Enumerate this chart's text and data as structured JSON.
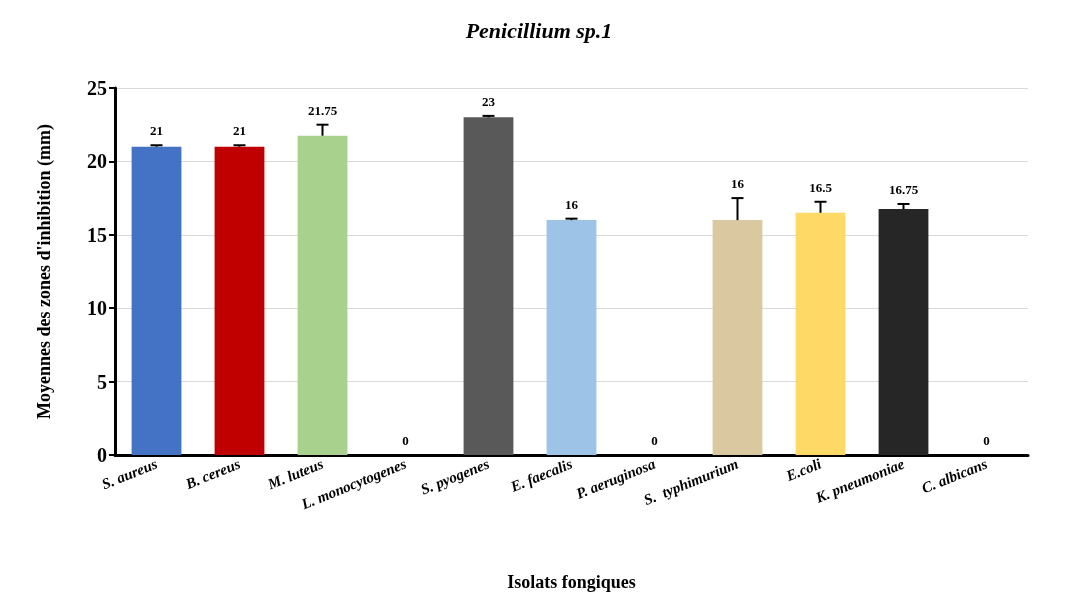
{
  "chart_data": {
    "type": "bar",
    "title": "Penicillium sp.1",
    "xlabel": "Isolats fongiques",
    "ylabel": "Moyennes des zones d'inhibition (mm)",
    "categories": [
      "S. aureus",
      "B. cereus",
      "M. luteus",
      "L. monocytogenes",
      "S. pyogenes",
      "E. faecalis",
      "P. aeruginosa",
      "S.  typhimurium",
      "E.coli",
      "K. pneumoniae",
      "C. albicans"
    ],
    "values": [
      21,
      21,
      21.75,
      0,
      23,
      16,
      0,
      16,
      16.5,
      16.75,
      0
    ],
    "colors": [
      "#4472c4",
      "#c00000",
      "#a9d18e",
      "#808080",
      "#595959",
      "#9dc3e6",
      "#808080",
      "#d9c8a0",
      "#ffd966",
      "#262626",
      "#808080"
    ],
    "errors": [
      [
        21,
        21.1
      ],
      [
        21,
        21.1
      ],
      [
        21.75,
        22.5
      ],
      null,
      [
        23,
        23.1
      ],
      [
        16,
        16.1
      ],
      null,
      [
        16,
        17.5
      ],
      [
        16.5,
        17.25
      ],
      [
        16.75,
        17.1
      ],
      null
    ],
    "ylim": [
      0,
      25
    ],
    "yticks": [
      0,
      5,
      10,
      15,
      20,
      25
    ],
    "grid": "y",
    "data_labels": true
  }
}
